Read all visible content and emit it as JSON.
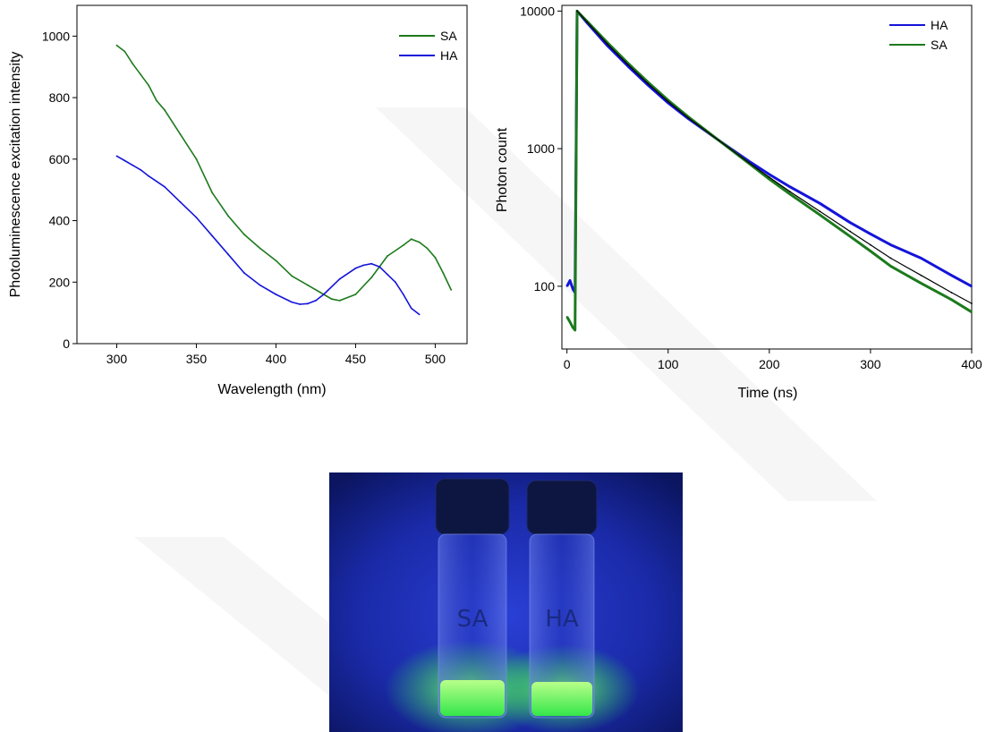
{
  "chart_data": [
    {
      "type": "line",
      "title": "",
      "xlabel": "Wavelength (nm)",
      "ylabel": "Photoluminescence excitation intensity",
      "xlim": [
        275,
        520
      ],
      "ylim": [
        0,
        1100
      ],
      "x_ticks": [
        300,
        350,
        400,
        450,
        500
      ],
      "y_ticks": [
        0,
        200,
        400,
        600,
        800,
        1000
      ],
      "legend_position": "top-right",
      "legend": [
        "SA",
        "HA"
      ],
      "series": [
        {
          "name": "SA",
          "color": "#1c7a1c",
          "x": [
            300,
            305,
            310,
            315,
            320,
            325,
            330,
            340,
            350,
            360,
            370,
            380,
            390,
            400,
            410,
            420,
            430,
            435,
            440,
            450,
            460,
            470,
            480,
            485,
            490,
            495,
            500,
            505,
            510
          ],
          "y": [
            970,
            950,
            910,
            875,
            840,
            790,
            760,
            680,
            600,
            490,
            415,
            355,
            310,
            270,
            220,
            190,
            160,
            145,
            140,
            160,
            215,
            285,
            320,
            340,
            330,
            310,
            280,
            230,
            175
          ]
        },
        {
          "name": "HA",
          "color": "#1414d9",
          "x": [
            300,
            305,
            310,
            315,
            320,
            330,
            340,
            350,
            360,
            370,
            380,
            390,
            400,
            410,
            415,
            420,
            425,
            430,
            440,
            450,
            455,
            460,
            465,
            470,
            475,
            480,
            485,
            490
          ],
          "y": [
            610,
            595,
            580,
            565,
            545,
            510,
            460,
            410,
            350,
            290,
            230,
            190,
            160,
            135,
            128,
            130,
            140,
            160,
            210,
            245,
            255,
            260,
            250,
            225,
            200,
            160,
            115,
            95
          ]
        }
      ]
    },
    {
      "type": "line",
      "title": "",
      "xlabel": "Time (ns)",
      "ylabel": "Photon count",
      "y_scale": "log",
      "xlim": [
        -5,
        400
      ],
      "ylim": [
        35,
        11000
      ],
      "x_ticks": [
        0,
        100,
        200,
        300,
        400
      ],
      "y_ticks": [
        100,
        1000,
        10000
      ],
      "legend_position": "top-right",
      "legend": [
        "HA",
        "SA"
      ],
      "series": [
        {
          "name": "HA",
          "color": "#1414d9",
          "x": [
            0,
            3,
            6,
            8,
            10,
            20,
            40,
            60,
            80,
            100,
            120,
            150,
            180,
            200,
            220,
            250,
            280,
            300,
            320,
            350,
            380,
            400
          ],
          "y": [
            100,
            110,
            95,
            90,
            10000,
            8200,
            5600,
            4000,
            2900,
            2150,
            1650,
            1150,
            810,
            650,
            530,
            400,
            290,
            240,
            200,
            160,
            120,
            100
          ]
        },
        {
          "name": "SA",
          "color": "#1c7a1c",
          "x": [
            0,
            3,
            6,
            8,
            10,
            20,
            40,
            60,
            80,
            100,
            120,
            150,
            180,
            200,
            220,
            250,
            280,
            300,
            320,
            350,
            380,
            400
          ],
          "y": [
            60,
            55,
            50,
            48,
            10000,
            8400,
            5900,
            4200,
            3050,
            2250,
            1700,
            1150,
            780,
            600,
            470,
            330,
            230,
            180,
            140,
            105,
            80,
            65
          ]
        },
        {
          "name": "",
          "color": "#000000",
          "x": [
            10,
            20,
            40,
            60,
            80,
            100,
            120,
            150,
            180,
            200,
            220,
            250,
            280,
            300,
            320,
            350,
            380,
            400
          ],
          "y": [
            10000,
            8300,
            5750,
            4100,
            2970,
            2200,
            1670,
            1150,
            790,
            620,
            490,
            350,
            250,
            200,
            160,
            120,
            90,
            75
          ]
        }
      ]
    }
  ],
  "photo": {
    "vial_left_label": "SA",
    "vial_right_label": "HA"
  }
}
